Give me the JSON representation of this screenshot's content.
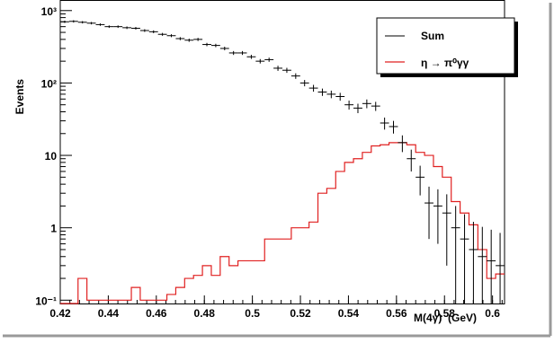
{
  "chart_data": {
    "type": "histogram",
    "title": "",
    "xlabel": "M(4γ)  (GeV)",
    "ylabel": "Events",
    "xlim": [
      0.42,
      0.605
    ],
    "ylim": [
      0.09,
      1400
    ],
    "yscale": "log",
    "grid": false,
    "legend_position": "top-right",
    "x_ticks": [
      "0.42",
      "0.44",
      "0.46",
      "0.48",
      "0.5",
      "0.52",
      "0.54",
      "0.56",
      "0.58",
      "0.6"
    ],
    "y_ticks": [
      "10⁻¹",
      "1",
      "10",
      "10²",
      "10³"
    ],
    "series": [
      {
        "name": "Sum",
        "style": "data-points-with-errors",
        "color": "#000000",
        "bin_width": 0.0037,
        "x": [
          0.42185,
          0.42555,
          0.42925,
          0.43295,
          0.43665,
          0.44035,
          0.44405,
          0.44775,
          0.45145,
          0.45515,
          0.45885,
          0.46255,
          0.46625,
          0.46995,
          0.47365,
          0.47735,
          0.48105,
          0.48475,
          0.48845,
          0.49215,
          0.49585,
          0.49955,
          0.50325,
          0.50695,
          0.51065,
          0.51435,
          0.51805,
          0.52175,
          0.52545,
          0.52915,
          0.53285,
          0.53655,
          0.54025,
          0.54395,
          0.54765,
          0.55135,
          0.55505,
          0.55875,
          0.56245,
          0.56615,
          0.56985,
          0.57355,
          0.57725,
          0.58095,
          0.58465,
          0.58835,
          0.59205,
          0.59575,
          0.59945,
          0.60315
        ],
        "y": [
          700,
          710,
          690,
          670,
          640,
          600,
          600,
          580,
          570,
          530,
          510,
          470,
          450,
          410,
          390,
          400,
          340,
          330,
          300,
          260,
          260,
          230,
          200,
          210,
          160,
          150,
          125,
          100,
          85,
          75,
          70,
          65,
          50,
          45,
          52,
          48,
          28,
          25,
          15,
          9,
          5,
          2.2,
          2.0,
          1.6,
          1.0,
          0.7,
          0.5,
          0.4,
          0.35,
          0.3
        ],
        "y_err": [
          26,
          27,
          26,
          26,
          25,
          24,
          24,
          24,
          24,
          23,
          23,
          22,
          21,
          20,
          20,
          20,
          18,
          18,
          17,
          16,
          16,
          15,
          14,
          14,
          13,
          12,
          11,
          10,
          9.2,
          8.7,
          8.4,
          8.1,
          7.1,
          6.7,
          7.2,
          6.9,
          5.3,
          5,
          3.9,
          3,
          2.2,
          1.5,
          1.4,
          1.3,
          1,
          0.84,
          0.71,
          0.63,
          0.59,
          0.55
        ]
      },
      {
        "name": "η → π⁰γγ",
        "style": "step-histogram",
        "color": "#e02020",
        "bin_width": 0.0037,
        "x": [
          0.42185,
          0.42555,
          0.42925,
          0.43295,
          0.43665,
          0.44035,
          0.44405,
          0.44775,
          0.45145,
          0.45515,
          0.45885,
          0.46255,
          0.46625,
          0.46995,
          0.47365,
          0.47735,
          0.48105,
          0.48475,
          0.48845,
          0.49215,
          0.49585,
          0.49955,
          0.50325,
          0.50695,
          0.51065,
          0.51435,
          0.51805,
          0.52175,
          0.52545,
          0.52915,
          0.53285,
          0.53655,
          0.54025,
          0.54395,
          0.54765,
          0.55135,
          0.55505,
          0.55875,
          0.56245,
          0.56615,
          0.56985,
          0.57355,
          0.57725,
          0.58095,
          0.58465,
          0.58835,
          0.59205,
          0.59575,
          0.59945,
          0.60315
        ],
        "y": [
          0.09,
          0.09,
          0.2,
          0.1,
          0.1,
          0.1,
          0.1,
          0.1,
          0.15,
          0.1,
          0.1,
          0.1,
          0.12,
          0.15,
          0.2,
          0.22,
          0.3,
          0.22,
          0.4,
          0.3,
          0.35,
          0.35,
          0.35,
          0.7,
          0.7,
          0.7,
          1.0,
          1.0,
          1.2,
          3.0,
          3.5,
          6.0,
          8.0,
          9.0,
          11.0,
          13.5,
          14.0,
          15.0,
          15.0,
          14.0,
          11.0,
          10.0,
          7.0,
          5.0,
          2.3,
          1.6,
          1.1,
          0.5,
          0.2,
          0.23
        ]
      }
    ]
  }
}
